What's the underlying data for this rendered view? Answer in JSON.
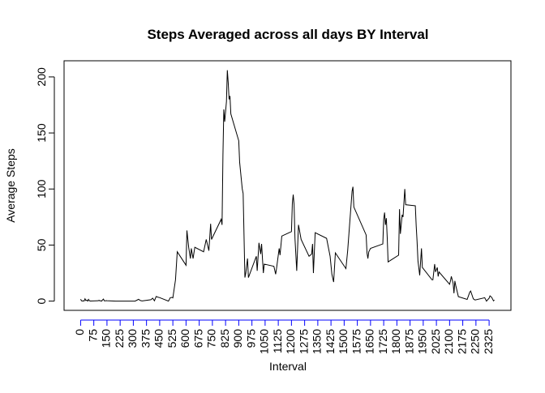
{
  "chart_data": {
    "type": "line",
    "title": "Steps Averaged across all days BY Interval",
    "x_label": "Interval",
    "y_label": "Average Steps",
    "x": [
      0,
      5,
      10,
      15,
      20,
      25,
      30,
      35,
      40,
      45,
      50,
      55,
      100,
      105,
      110,
      115,
      120,
      125,
      130,
      135,
      140,
      145,
      150,
      200,
      300,
      310,
      330,
      340,
      350,
      400,
      410,
      420,
      430,
      440,
      450,
      500,
      510,
      520,
      525,
      540,
      550,
      600,
      605,
      615,
      625,
      630,
      640,
      650,
      700,
      715,
      730,
      740,
      745,
      800,
      805,
      810,
      815,
      820,
      830,
      835,
      840,
      845,
      850,
      855,
      900,
      905,
      915,
      920,
      925,
      935,
      940,
      950,
      955,
      1000,
      1005,
      1015,
      1025,
      1030,
      1040,
      1045,
      1100,
      1110,
      1115,
      1120,
      1130,
      1135,
      1145,
      1200,
      1205,
      1210,
      1215,
      1220,
      1230,
      1240,
      1255,
      1300,
      1315,
      1320,
      1325,
      1335,
      1400,
      1420,
      1430,
      1440,
      1450,
      1510,
      1520,
      1545,
      1550,
      1555,
      1625,
      1630,
      1635,
      1640,
      1650,
      1720,
      1725,
      1730,
      1735,
      1740,
      1745,
      1750,
      1810,
      1815,
      1820,
      1830,
      1835,
      1845,
      1850,
      1905,
      1910,
      1915,
      1920,
      1930,
      1940,
      1945,
      2000,
      2005,
      2015,
      2020,
      2030,
      2035,
      2040,
      2100,
      2105,
      2110,
      2120,
      2125,
      2130,
      2135,
      2150,
      2200,
      2215,
      2220,
      2235,
      2245,
      2300,
      2310,
      2325,
      2330,
      2340,
      2350,
      2355
    ],
    "values": [
      1.7,
      0.3,
      0.1,
      0.2,
      0.1,
      2.1,
      0.5,
      0.9,
      0,
      1.5,
      0.3,
      0.1,
      0.3,
      0.7,
      0.2,
      0.3,
      0,
      1.1,
      1.8,
      0.2,
      0.2,
      0.4,
      0.3,
      0,
      0,
      0,
      1.6,
      0.5,
      0.2,
      1.2,
      2.6,
      0.3,
      4.1,
      3.5,
      3.1,
      0,
      3,
      3.3,
      2.9,
      19,
      44,
      32,
      63,
      48,
      38,
      47,
      38,
      48,
      44,
      55,
      45,
      69,
      55,
      73,
      68,
      130,
      171,
      160,
      178,
      206,
      195,
      180,
      183,
      167,
      143,
      124,
      108,
      100,
      96,
      21,
      25,
      38,
      21,
      40,
      27,
      52,
      42,
      51,
      25,
      33,
      31,
      24,
      29,
      35,
      47,
      41,
      58,
      62,
      87,
      95,
      86,
      56,
      27,
      68,
      55,
      40,
      42,
      51,
      25,
      61,
      56,
      40,
      24,
      17,
      43,
      29,
      45,
      98,
      102,
      84,
      59,
      43,
      38,
      44,
      47,
      51,
      73,
      79,
      68,
      74,
      57,
      35,
      41,
      82,
      60,
      77,
      75,
      100,
      86,
      85,
      67,
      53,
      36,
      23,
      47,
      30,
      19,
      19,
      33,
      26,
      30,
      22,
      26,
      15,
      18,
      22,
      16,
      7,
      18,
      14,
      4,
      1.5,
      8,
      9,
      2,
      1,
      3,
      0,
      2.6,
      4.7,
      3.3,
      0.2,
      1
    ],
    "color": "#000000",
    "tick_color": "#0000ff",
    "xlim": [
      -94.2,
      2449.2
    ],
    "xticks": [
      0,
      75,
      150,
      225,
      300,
      375,
      450,
      525,
      600,
      675,
      750,
      825,
      900,
      975,
      1050,
      1125,
      1200,
      1275,
      1350,
      1425,
      1500,
      1575,
      1650,
      1725,
      1800,
      1875,
      1950,
      2025,
      2100,
      2175,
      2250,
      2325
    ],
    "ylim": [
      -8.25,
      214.4
    ],
    "yticks": [
      0,
      50,
      100,
      150,
      200
    ]
  }
}
